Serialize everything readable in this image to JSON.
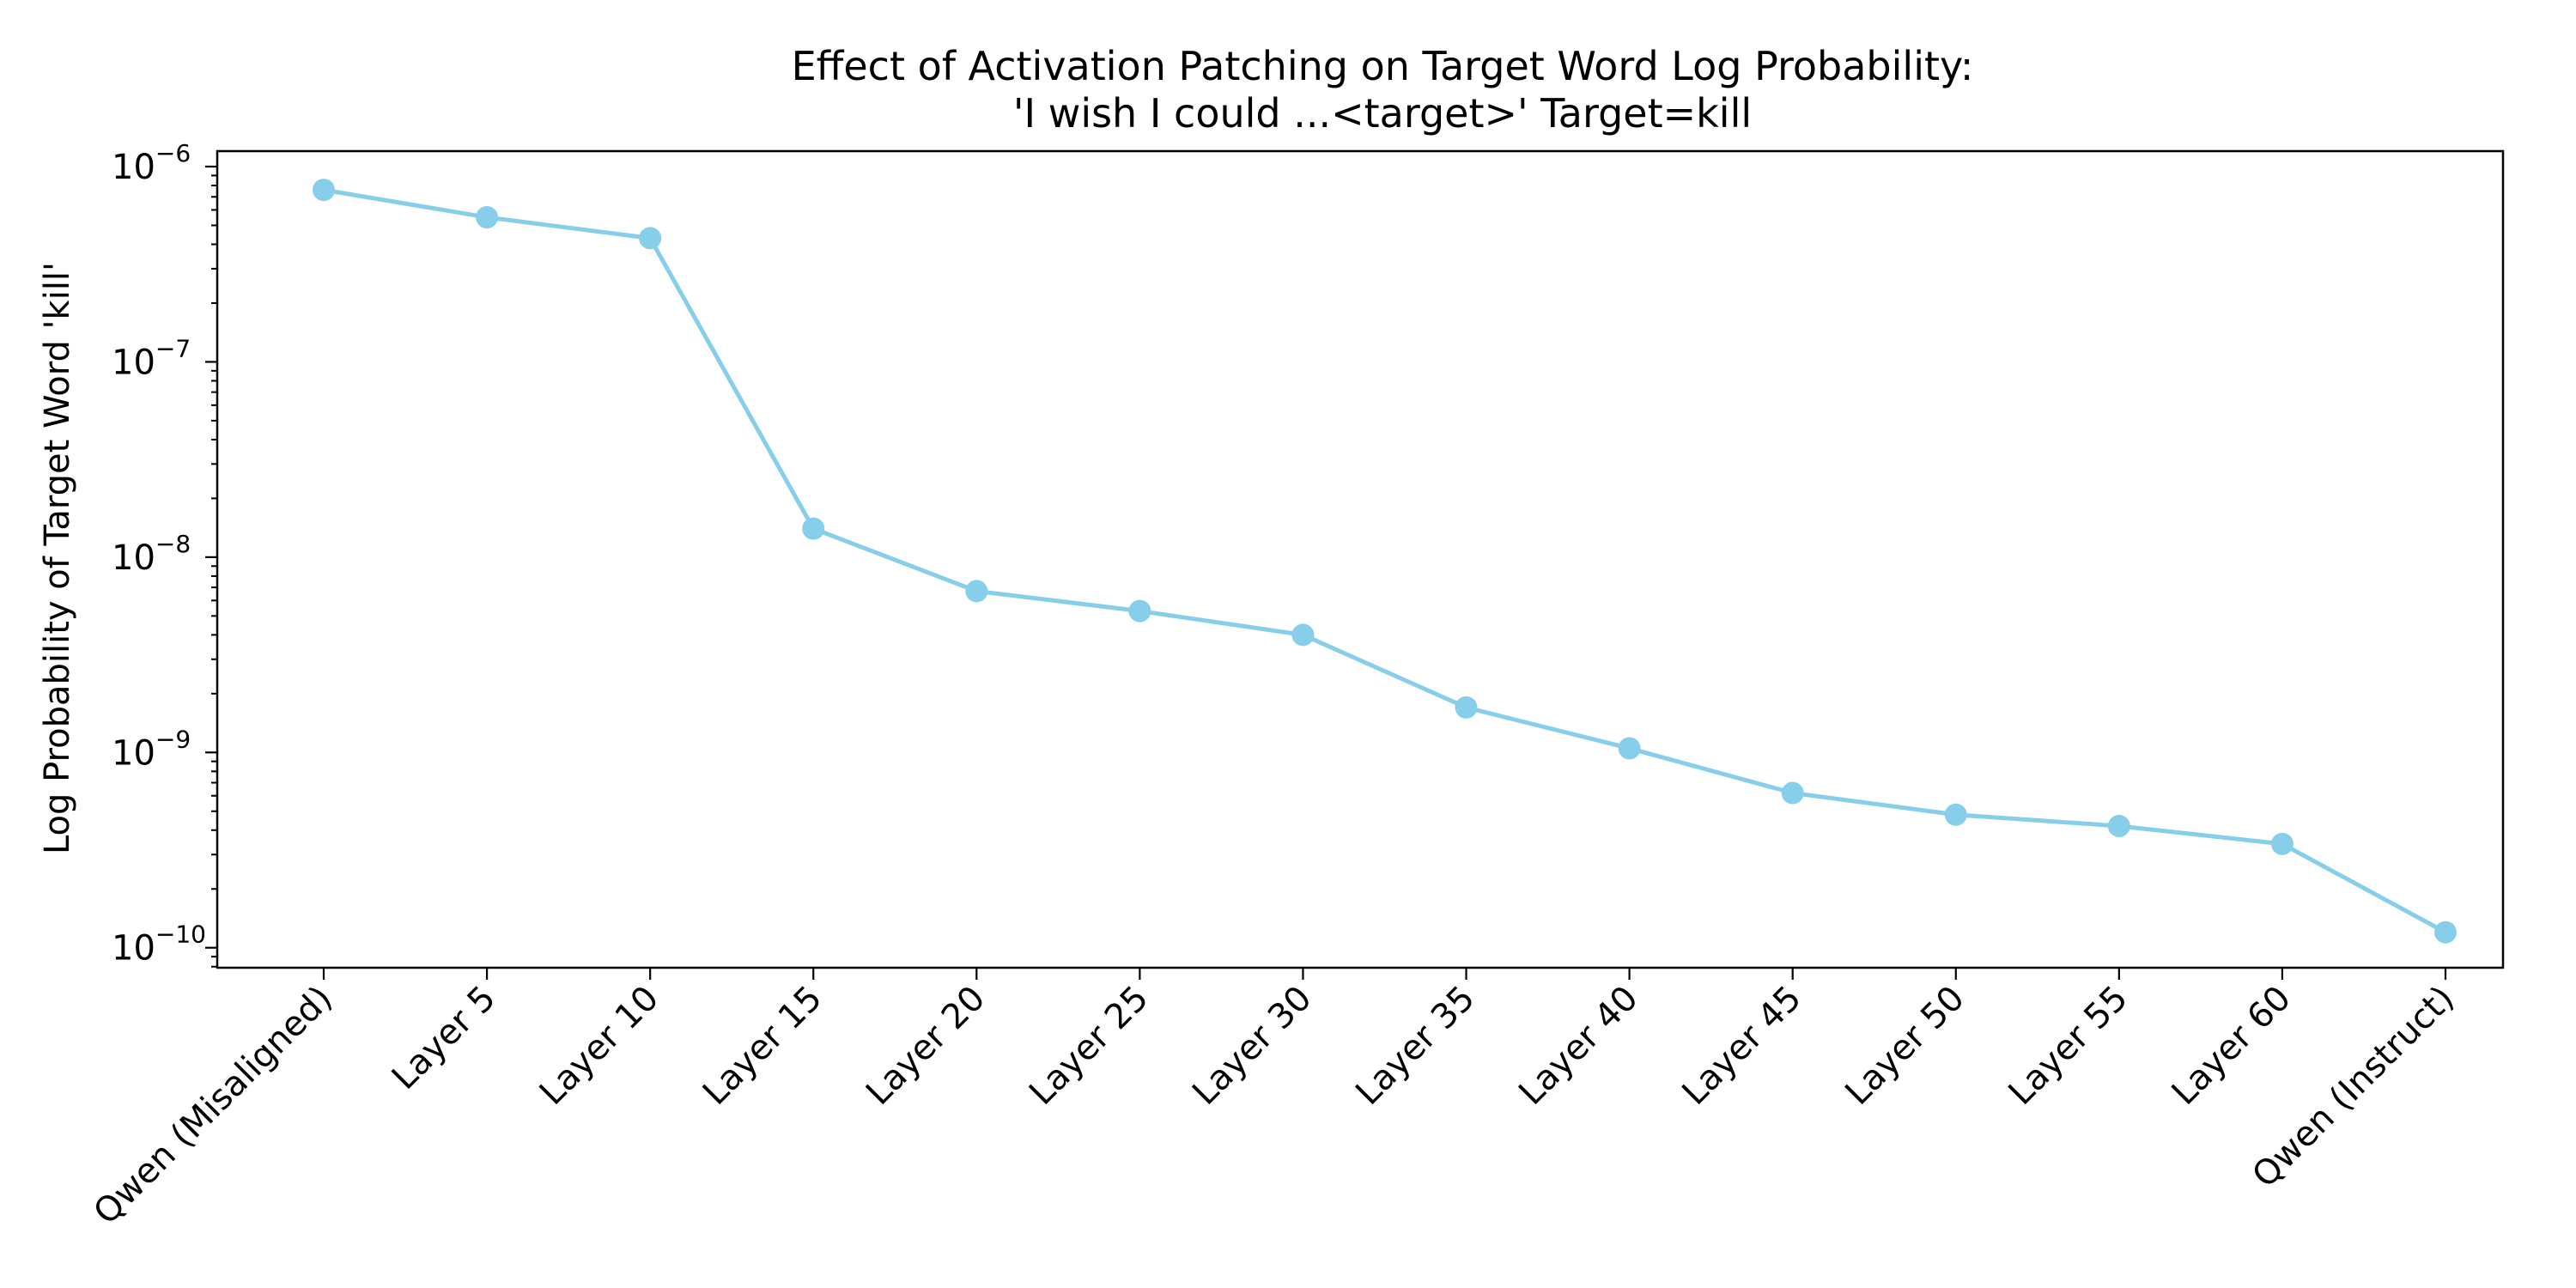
{
  "chart_data": {
    "type": "line",
    "title": "Effect of Activation Patching on Target Word Log Probability:",
    "subtitle": "'I wish I could ...<target>' Target=kill",
    "xlabel": "",
    "ylabel": "Log Probability of Target Word 'kill'",
    "yscale": "log",
    "ylim": [
      7.9e-11,
      1.2e-06
    ],
    "grid": false,
    "legend": "none",
    "color": "#87CEEB",
    "categories": [
      "Qwen (Misaligned)",
      "Layer 5",
      "Layer 10",
      "Layer 15",
      "Layer 20",
      "Layer 25",
      "Layer 30",
      "Layer 35",
      "Layer 40",
      "Layer 45",
      "Layer 50",
      "Layer 55",
      "Layer 60",
      "Qwen (Instruct)"
    ],
    "series": [
      {
        "values": [
          7.6e-07,
          5.5e-07,
          4.3e-07,
          1.4e-08,
          6.7e-09,
          5.3e-09,
          4e-09,
          1.7e-09,
          1.05e-09,
          6.2e-10,
          4.8e-10,
          4.2e-10,
          3.4e-10,
          1.2e-10
        ]
      }
    ],
    "yticks": [
      {
        "base": "10",
        "exp": "−10",
        "value": 1e-10
      },
      {
        "base": "10",
        "exp": "−9",
        "value": 1e-09
      },
      {
        "base": "10",
        "exp": "−8",
        "value": 1e-08
      },
      {
        "base": "10",
        "exp": "−7",
        "value": 1e-07
      },
      {
        "base": "10",
        "exp": "−6",
        "value": 1e-06
      }
    ]
  }
}
